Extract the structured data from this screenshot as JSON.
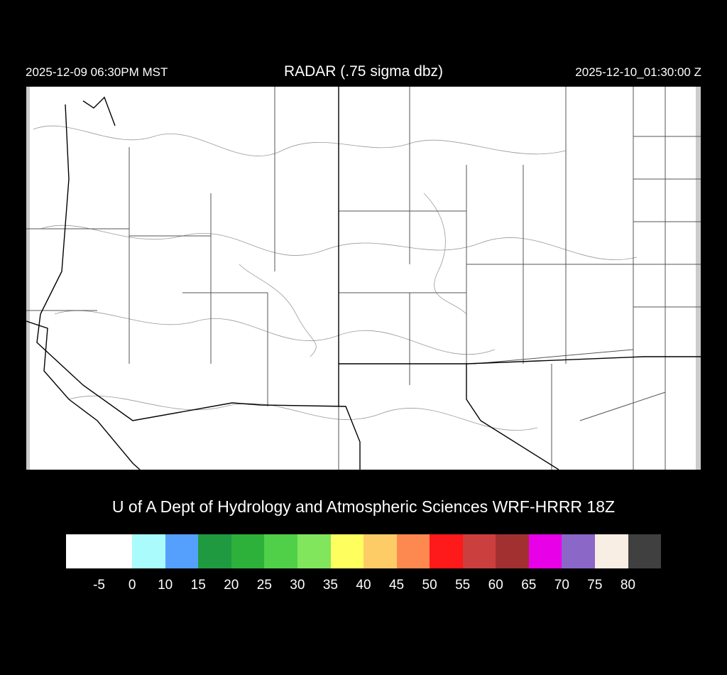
{
  "header": {
    "local_time": "2025-12-09 06:30PM MST",
    "title": "RADAR (.75 sigma dbz)",
    "valid_time": "2025-12-10_01:30:00 Z"
  },
  "credit": "U of A Dept of Hydrology and Atmospheric Sciences WRF-HRRR 18Z",
  "colorbar": {
    "colors": [
      "#ffffff",
      "#ffffff",
      "#aafcfc",
      "#55a0fd",
      "#209a40",
      "#2db13a",
      "#50cf48",
      "#82e65d",
      "#fefe5f",
      "#fecc66",
      "#fe8950",
      "#fe1a1a",
      "#cc3f3f",
      "#a33030",
      "#e800e8",
      "#8b67c8",
      "#f9eee3",
      "#404040"
    ],
    "labels": [
      "-5",
      "0",
      "10",
      "15",
      "20",
      "25",
      "30",
      "35",
      "40",
      "45",
      "50",
      "55",
      "60",
      "65",
      "70",
      "75",
      "80"
    ]
  }
}
